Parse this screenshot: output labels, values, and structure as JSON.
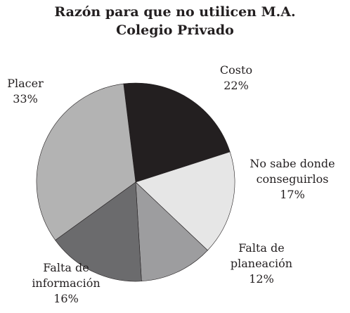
{
  "chart_data": {
    "type": "pie",
    "title": "Razón para que no utilicen M.A.",
    "subtitle": "Colegio Privado",
    "categories": [
      "Costo",
      "No sabe donde conseguirlos",
      "Falta de planeación",
      "Falta de información",
      "Placer"
    ],
    "values": [
      22,
      17,
      12,
      16,
      33
    ],
    "value_labels": [
      "22%",
      "17%",
      "12%",
      "16%",
      "33%"
    ],
    "colors": [
      "#231f20",
      "#e6e6e6",
      "#9d9d9f",
      "#6b6b6d",
      "#b3b3b3"
    ]
  }
}
